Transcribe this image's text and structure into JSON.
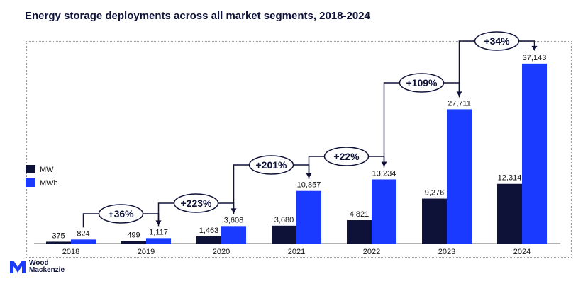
{
  "title": "Energy storage deployments across all market segments, 2018-2024",
  "brand": {
    "line1": "Wood",
    "line2": "Mackenzie",
    "icon": "wood-mackenzie-logo"
  },
  "colors": {
    "mw": "#0e1138",
    "mwh": "#1a3bff",
    "text": "#111111",
    "axis": "#666666"
  },
  "chart_data": {
    "type": "bar",
    "title": "Energy storage deployments across all market segments, 2018-2024",
    "xlabel": "",
    "ylabel": "",
    "categories": [
      "2018",
      "2019",
      "2020",
      "2021",
      "2022",
      "2023",
      "2024"
    ],
    "series": [
      {
        "name": "MW",
        "values": [
          375,
          499,
          1463,
          3680,
          4821,
          9276,
          12314
        ],
        "labels": [
          "375",
          "499",
          "1,463",
          "3,680",
          "4,821",
          "9,276",
          "12,314"
        ]
      },
      {
        "name": "MWh",
        "values": [
          824,
          1117,
          3608,
          10857,
          13234,
          27711,
          37143
        ],
        "labels": [
          "824",
          "1,117",
          "3,608",
          "10,857",
          "13,234",
          "27,711",
          "37,143"
        ]
      }
    ],
    "ylim": [
      0,
      38000
    ],
    "grid": false,
    "legend": "left",
    "annotations": [
      {
        "text": "+36%",
        "from": "2018",
        "to": "2019"
      },
      {
        "text": "+223%",
        "from": "2019",
        "to": "2020"
      },
      {
        "text": "+201%",
        "from": "2020",
        "to": "2021"
      },
      {
        "text": "+22%",
        "from": "2021",
        "to": "2022"
      },
      {
        "text": "+109%",
        "from": "2022",
        "to": "2023"
      },
      {
        "text": "+34%",
        "from": "2023",
        "to": "2024"
      }
    ]
  }
}
